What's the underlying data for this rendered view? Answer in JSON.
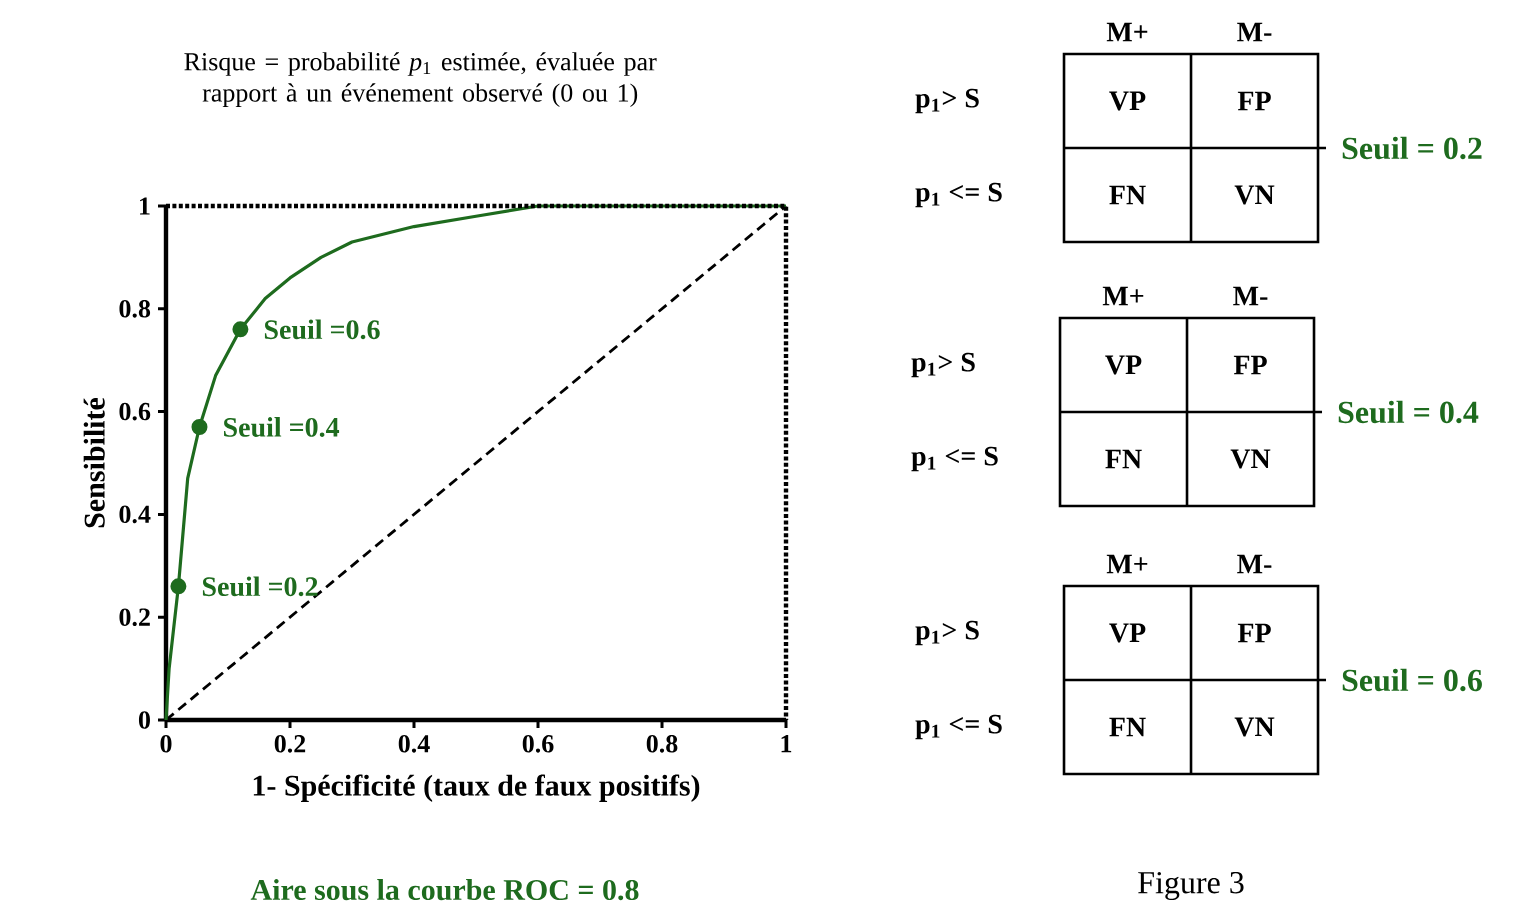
{
  "chart_data": [
    {
      "type": "line",
      "title": "Risque = probabilité *p*$_{1}$ estimée, évaluée par rapport à un événement observé (0 ou 1)",
      "xlabel": "1- Spécificité (taux de faux positifs)",
      "ylabel": "Sensibilité",
      "xlim": [
        0,
        1
      ],
      "ylim": [
        0,
        1
      ],
      "xticks": [
        0,
        0.2,
        0.4,
        0.6,
        0.8,
        1
      ],
      "yticks": [
        0,
        0.2,
        0.4,
        0.6,
        0.8,
        1
      ],
      "series": [
        {
          "type": "line",
          "color": "#000000",
          "line_style": "dashed",
          "marker": "none",
          "x": [
            0,
            1
          ],
          "values": [
            0,
            1
          ]
        },
        {
          "type": "line",
          "color": "#1e6b1e",
          "line_style": "solid",
          "marker": "none",
          "x": [
            0,
            0.005,
            0.02,
            0.035,
            0.054,
            0.08,
            0.12,
            0.16,
            0.2,
            0.25,
            0.3,
            0.4,
            0.5,
            0.6,
            0.9,
            1
          ],
          "values": [
            0,
            0.1,
            0.26,
            0.47,
            0.57,
            0.67,
            0.76,
            0.82,
            0.86,
            0.9,
            0.93,
            0.96,
            0.98,
            1,
            1,
            1
          ]
        },
        {
          "type": "scatter",
          "color": "#1e6b1e",
          "marker": "circle",
          "x": [
            0.02,
            0.054,
            0.12
          ],
          "values": [
            0.26,
            0.57,
            0.76
          ]
        }
      ],
      "annotations": [
        {
          "text": "Seuil =0.2",
          "x": 0.02,
          "y": 0.26
        },
        {
          "text": "Seuil =0.4",
          "x": 0.054,
          "y": 0.57
        },
        {
          "text": "Seuil =0.6",
          "x": 0.12,
          "y": 0.76
        },
        "Aire sous la courbe ROC = 0.8"
      ]
    },
    {
      "type": "other",
      "categories": [
        "M+",
        "M-"
      ],
      "y_categories": [
        "p$_{1}$> S",
        "p$_{1}$ <= S"
      ],
      "cell_labels": [
        [
          "VP",
          "FP"
        ],
        [
          "FN",
          "VN"
        ]
      ],
      "annotations": [
        "Seuil = 0.2"
      ]
    },
    {
      "type": "other",
      "categories": [
        "M+",
        "M-"
      ],
      "y_categories": [
        "p$_{1}$> S",
        "p$_{1}$ <= S"
      ],
      "cell_labels": [
        [
          "VP",
          "FP"
        ],
        [
          "FN",
          "VN"
        ]
      ],
      "annotations": [
        "Seuil = 0.4"
      ]
    },
    {
      "type": "other",
      "categories": [
        "M+",
        "M-"
      ],
      "y_categories": [
        "p$_{1}$> S",
        "p$_{1}$ <= S"
      ],
      "cell_labels": [
        [
          "VP",
          "FP"
        ],
        [
          "FN",
          "VN"
        ]
      ],
      "annotations": [
        "Seuil = 0.6",
        "Figure 3"
      ]
    }
  ]
}
